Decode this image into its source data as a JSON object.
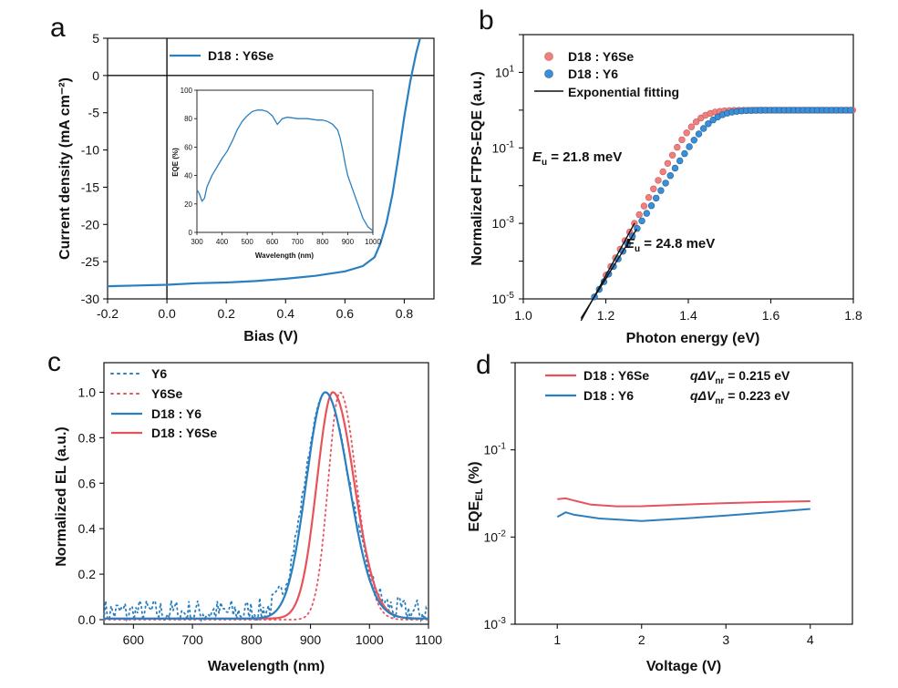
{
  "colors": {
    "red": "#e8525a",
    "blue": "#2a7fc0",
    "redDot": "#f08080",
    "blueDot": "#3a8fd6",
    "black": "#111111"
  },
  "panels": {
    "a": "a",
    "b": "b",
    "c": "c",
    "d": "d"
  },
  "chart_data": [
    {
      "id": "a",
      "type": "line",
      "xlabel": "Bias (V)",
      "ylabel": "Current density (mA cm⁻²)",
      "xlim": [
        -0.2,
        0.9
      ],
      "ylim": [
        -30,
        5
      ],
      "xticks": [
        -0.2,
        0.0,
        0.2,
        0.4,
        0.6,
        0.8
      ],
      "xtick_labels": [
        "-0.2",
        "0.0",
        "0.2",
        "0.4",
        "0.6",
        "0.8"
      ],
      "yticks": [
        5,
        0,
        -5,
        -10,
        -15,
        -20,
        -25,
        -30
      ],
      "ytick_labels": [
        "5",
        "0",
        "-5",
        "-10",
        "-15",
        "-20",
        "-25",
        "-30"
      ],
      "series": [
        {
          "name": "D18 : Y6Se",
          "x": [
            -0.2,
            -0.1,
            0.0,
            0.1,
            0.2,
            0.3,
            0.4,
            0.5,
            0.6,
            0.66,
            0.7,
            0.72,
            0.74,
            0.76,
            0.78,
            0.8,
            0.82,
            0.84,
            0.86
          ],
          "y": [
            -28.3,
            -28.2,
            -28.1,
            -27.9,
            -27.8,
            -27.6,
            -27.3,
            -26.9,
            -26.3,
            -25.6,
            -24.4,
            -22.5,
            -19.8,
            -16.0,
            -11.0,
            -5.5,
            -0.8,
            3.0,
            6.0
          ]
        }
      ],
      "inset": {
        "xlabel": "Wavelength (nm)",
        "ylabel": "EQE (%)",
        "xlim": [
          300,
          1000
        ],
        "ylim": [
          0,
          100
        ],
        "xticks": [
          300,
          400,
          500,
          600,
          700,
          800,
          900,
          1000
        ],
        "xtick_labels": [
          "300",
          "400",
          "500",
          "600",
          "700",
          "800",
          "900",
          "1000"
        ],
        "yticks": [
          0,
          20,
          40,
          60,
          80,
          100
        ],
        "ytick_labels": [
          "0",
          "20",
          "40",
          "60",
          "80",
          "100"
        ],
        "x": [
          300,
          310,
          320,
          330,
          340,
          360,
          380,
          400,
          420,
          440,
          460,
          480,
          500,
          520,
          540,
          560,
          580,
          600,
          610,
          620,
          630,
          640,
          660,
          700,
          740,
          780,
          800,
          820,
          840,
          860,
          870,
          880,
          890,
          900,
          920,
          940,
          960,
          980,
          1000
        ],
        "y": [
          30,
          27,
          22,
          24,
          32,
          40,
          46,
          52,
          57,
          64,
          72,
          78,
          82,
          85,
          86,
          86,
          85,
          82,
          79,
          76,
          78,
          80,
          81,
          80,
          80,
          79,
          79,
          78,
          76,
          72,
          66,
          58,
          48,
          40,
          30,
          20,
          10,
          4,
          1
        ]
      }
    },
    {
      "id": "b",
      "type": "scatter",
      "xlabel": "Photon energy (eV)",
      "ylabel": "Normalized FTPS-EQE (a.u.)",
      "xlim": [
        1.0,
        1.8
      ],
      "ylim_log10": [
        -5,
        2
      ],
      "xticks": [
        1.0,
        1.2,
        1.4,
        1.6,
        1.8
      ],
      "xtick_labels": [
        "1.0",
        "1.2",
        "1.4",
        "1.6",
        "1.8"
      ],
      "ytick_exponents": [
        1,
        -1,
        -3,
        -5
      ],
      "ytick_labels": [
        "10",
        "10",
        "10",
        "10"
      ],
      "ytick_sup": [
        "1",
        "-1",
        "-3",
        "-5"
      ],
      "legend": [
        "D18 : Y6Se",
        "D18 : Y6",
        "Exponential fitting"
      ],
      "annotations": [
        {
          "main": "E",
          "sub": "u",
          "rest": " = 21.8 meV"
        },
        {
          "main": "E",
          "sub": "u",
          "rest": " = 24.8 meV"
        }
      ],
      "series": [
        {
          "name": "D18 : Y6Se",
          "Eu_meV": 21.8,
          "E0": 1.42,
          "logA": 0,
          "x_start": 1.12,
          "x_end": 1.8,
          "floor_log": -4.4
        },
        {
          "name": "D18 : Y6",
          "Eu_meV": 24.8,
          "E0": 1.455,
          "logA": 0,
          "x_start": 1.115,
          "x_end": 1.8,
          "floor_log": -5
        }
      ],
      "fits": [
        {
          "name": "D18 : Y6Se fit",
          "x": [
            1.14,
            1.27
          ]
        },
        {
          "name": "D18 : Y6 fit",
          "x": [
            1.14,
            1.275
          ]
        }
      ]
    },
    {
      "id": "c",
      "type": "line",
      "xlabel": "Wavelength (nm)",
      "ylabel": "Normalized EL (a.u.)",
      "xlim": [
        550,
        1100
      ],
      "ylim": [
        -0.02,
        1.13
      ],
      "xticks": [
        600,
        700,
        800,
        900,
        1000,
        1100
      ],
      "xtick_labels": [
        "600",
        "700",
        "800",
        "900",
        "1000",
        "1100"
      ],
      "yticks": [
        0.0,
        0.2,
        0.4,
        0.6,
        0.8,
        1.0
      ],
      "ytick_labels": [
        "0.0",
        "0.2",
        "0.4",
        "0.6",
        "0.8",
        "1.0"
      ],
      "legend": [
        "Y6",
        "Y6Se",
        "D18 : Y6",
        "D18 : Y6Se"
      ],
      "series": [
        {
          "name": "Y6",
          "style": "dotted",
          "peak": 925,
          "sigma_left": 34,
          "sigma_right": 40,
          "noise": 0.12
        },
        {
          "name": "Y6Se",
          "style": "dotted",
          "peak": 950,
          "sigma_left": 20,
          "sigma_right": 28,
          "noise": 0.0
        },
        {
          "name": "D18 : Y6",
          "style": "solid",
          "peak": 925,
          "sigma_left": 32,
          "sigma_right": 40,
          "noise": 0.0
        },
        {
          "name": "D18 : Y6Se",
          "style": "solid",
          "peak": 938,
          "sigma_left": 27,
          "sigma_right": 36,
          "noise": 0.0
        }
      ]
    },
    {
      "id": "d",
      "type": "line",
      "xlabel": "Voltage (V)",
      "ylabel_main": "EQE",
      "ylabel_sub": "EL",
      "ylabel_rest": " (%)",
      "xlim": [
        0.5,
        4.5
      ],
      "ylim_log10": [
        -3,
        0
      ],
      "xticks": [
        1,
        2,
        3,
        4
      ],
      "xtick_labels": [
        "1",
        "2",
        "3",
        "4"
      ],
      "ytick_exponents": [
        -1,
        -2,
        -3
      ],
      "ytick_labels": [
        "10",
        "10",
        "10"
      ],
      "ytick_sup": [
        "-1",
        "-2",
        "-3"
      ],
      "legend": [
        {
          "name": "D18 : Y6Se",
          "q": "q",
          "delta": "ΔV",
          "sub": "nr",
          "value": " = 0.215 eV"
        },
        {
          "name": "D18 : Y6",
          "q": "q",
          "delta": "ΔV",
          "sub": "nr",
          "value": " = 0.223 eV"
        }
      ],
      "series": [
        {
          "name": "D18 : Y6Se",
          "x": [
            1.0,
            1.1,
            1.2,
            1.4,
            1.7,
            2.0,
            2.5,
            3.0,
            3.5,
            4.0
          ],
          "y": [
            0.0272,
            0.0278,
            0.0262,
            0.0235,
            0.0225,
            0.0226,
            0.0236,
            0.0245,
            0.0252,
            0.0258
          ]
        },
        {
          "name": "D18 : Y6",
          "x": [
            1.0,
            1.1,
            1.2,
            1.5,
            2.0,
            2.5,
            3.0,
            3.5,
            4.0
          ],
          "y": [
            0.017,
            0.0192,
            0.018,
            0.0163,
            0.0153,
            0.0163,
            0.0176,
            0.0192,
            0.021
          ]
        }
      ]
    }
  ]
}
